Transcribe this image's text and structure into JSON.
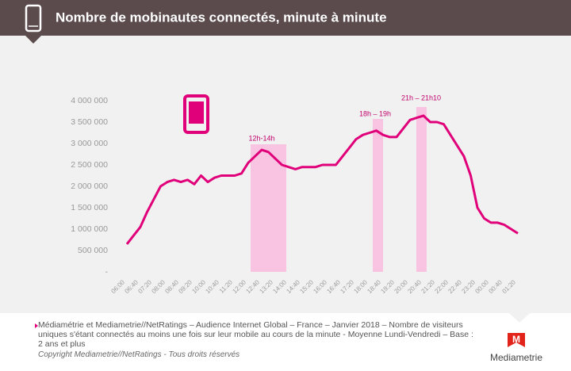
{
  "chart_data": {
    "type": "line",
    "title": "Nombre de mobinautes connectés, minute à minute",
    "categories": [
      "06:00",
      null,
      "06:40",
      null,
      "07:20",
      null,
      "08:00",
      null,
      "08:40",
      null,
      "09:20",
      null,
      "10:00",
      null,
      "10:40",
      null,
      "11:20",
      null,
      "12:00",
      null,
      "12:40",
      null,
      "13:20",
      null,
      "14:00",
      null,
      "14:40",
      null,
      "15:20",
      null,
      "16:00",
      null,
      "16:40",
      null,
      "17:20",
      null,
      "18:00",
      null,
      "18:40",
      null,
      "19:20",
      null,
      "20:00",
      null,
      "20:40",
      null,
      "21:20",
      null,
      "22:00",
      null,
      "22:40",
      null,
      "23:20",
      null,
      "00:00",
      null,
      "00:40",
      null,
      "01:20"
    ],
    "values": [
      650000,
      850000,
      1050000,
      1400000,
      1700000,
      2000000,
      2100000,
      2150000,
      2100000,
      2150000,
      2050000,
      2250000,
      2100000,
      2200000,
      2250000,
      2250000,
      2250000,
      2300000,
      2550000,
      2700000,
      2850000,
      2800000,
      2650000,
      2500000,
      2450000,
      2400000,
      2450000,
      2450000,
      2450000,
      2500000,
      2500000,
      2500000,
      2700000,
      2900000,
      3100000,
      3200000,
      3250000,
      3300000,
      3200000,
      3150000,
      3150000,
      3350000,
      3550000,
      3600000,
      3650000,
      3500000,
      3500000,
      3450000,
      3200000,
      2950000,
      2700000,
      2250000,
      1500000,
      1250000,
      1150000,
      1150000,
      1100000,
      1000000,
      900000
    ],
    "color": "#e0007a",
    "ylim": [
      0,
      4000000
    ],
    "yticks": [
      {
        "value": 0,
        "label": "-"
      },
      {
        "value": 500000,
        "label": "500 000"
      },
      {
        "value": 1000000,
        "label": "1 000 000"
      },
      {
        "value": 1500000,
        "label": "1 500 000"
      },
      {
        "value": 2000000,
        "label": "2 000 000"
      },
      {
        "value": 2500000,
        "label": "2 500 000"
      },
      {
        "value": 3000000,
        "label": "3 000 000"
      },
      {
        "value": 3500000,
        "label": "3 500 000"
      },
      {
        "value": 4000000,
        "label": "4 000 000"
      }
    ],
    "annotations": [
      "12h-14h",
      "18h – 19h",
      "21h – 21h10"
    ]
  },
  "source": "Médiamétrie et Mediametrie//NetRatings – Audience Internet Global – France – Janvier 2018 – Nombre de visiteurs uniques s'étant connectés au moins une fois sur leur mobile au cours de la minute - Moyenne Lundi-Vendredi – Base : 2 ans et plus",
  "copyright": "Copyright Mediametrie//NetRatings - Tous droits réservés",
  "logo": "Mediametrie"
}
